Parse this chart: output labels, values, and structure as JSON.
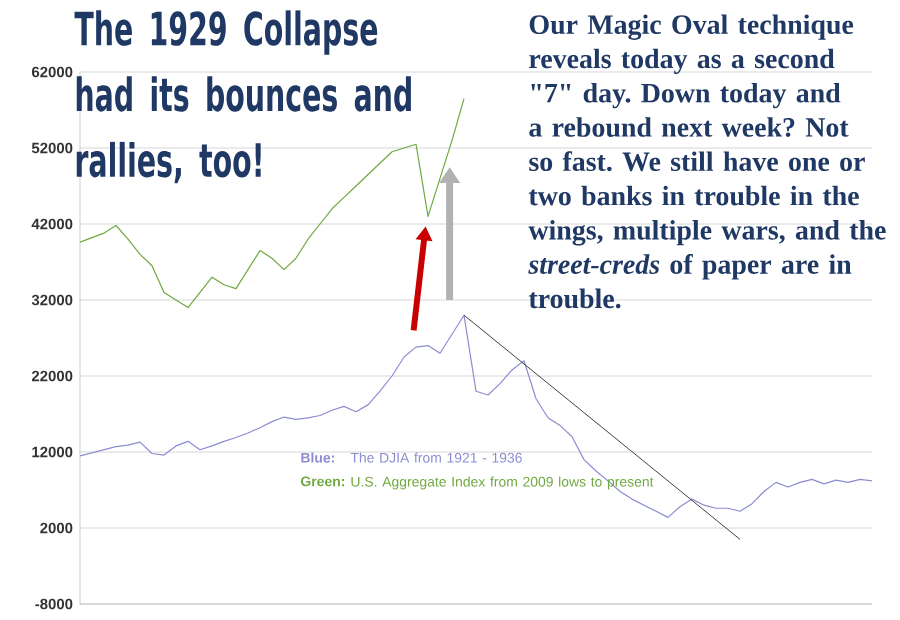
{
  "chart_data": {
    "type": "line",
    "title": "The 1929 Collapse had its bounces and rallies, too!",
    "annotations": [
      "Our Magic Oval technique reveals today as a second \"7\" day. Down today and a rebound next week? Not so fast. We still have one or two banks in trouble in the wings, multiple wars, and the *street-creds* of paper are in trouble.",
      "Blue:",
      "Green:"
    ],
    "categories": [
      null,
      null,
      null,
      null,
      null,
      null,
      null,
      null,
      null,
      null,
      null,
      null,
      null,
      null,
      null,
      null,
      null,
      null,
      null,
      null,
      null,
      null,
      null,
      null,
      null,
      null,
      null,
      null,
      null,
      null,
      null,
      null,
      null,
      null,
      null,
      null,
      null,
      null,
      null,
      null,
      null,
      null,
      null,
      null,
      null,
      null,
      null,
      null,
      null,
      null,
      null,
      null,
      null,
      null,
      null,
      null,
      null,
      null,
      null,
      null,
      null,
      null,
      null,
      null,
      null,
      null,
      null
    ],
    "series": [
      {
        "name": "The DJIA from 1921 - 1936",
        "color": "#8c8cd2",
        "values": [
          11500,
          11900,
          12300,
          12700,
          12900,
          13300,
          11800,
          11600,
          12800,
          13400,
          12300,
          12800,
          13400,
          13900,
          14500,
          15200,
          16000,
          16600,
          16300,
          16500,
          16800,
          17500,
          18000,
          17300,
          18200,
          20000,
          22000,
          24500,
          25800,
          26000,
          25000,
          27500,
          30000,
          20000,
          19500,
          21000,
          22800,
          24000,
          19000,
          16500,
          15500,
          14000,
          11000,
          9500,
          8200,
          6800,
          5800,
          5000,
          4200,
          3400,
          4800,
          5800,
          5000,
          4600,
          4600,
          4200,
          5200,
          6800,
          8000,
          7400,
          8000,
          8400,
          7800,
          8300,
          8000,
          8400,
          8200
        ]
      },
      {
        "name": "U.S. Aggregate Index from 2009 lows to present",
        "color": "#70a840",
        "values": [
          39600,
          40200,
          40800,
          41800,
          40000,
          38000,
          36500,
          33000,
          32000,
          31000,
          33000,
          35000,
          34000,
          33500,
          36000,
          38500,
          37500,
          36000,
          37500,
          40000,
          42000,
          44000,
          45500,
          47000,
          48500,
          50000,
          51500,
          52000,
          52500,
          43000,
          48000,
          53000,
          58500,
          null,
          null,
          null,
          null,
          null,
          null,
          null,
          null,
          null,
          null,
          null,
          null,
          null,
          null,
          null,
          null,
          null,
          null,
          null,
          null,
          null,
          null,
          null,
          null,
          null,
          null,
          null,
          null,
          null,
          null,
          null,
          null,
          null,
          null
        ]
      },
      {
        "color": "#404040",
        "values": [
          null,
          null,
          null,
          null,
          null,
          null,
          null,
          null,
          null,
          null,
          null,
          null,
          null,
          null,
          null,
          null,
          null,
          null,
          null,
          null,
          null,
          null,
          null,
          null,
          null,
          null,
          null,
          null,
          null,
          null,
          null,
          null,
          30000,
          null,
          null,
          null,
          null,
          null,
          null,
          null,
          null,
          null,
          null,
          null,
          null,
          null,
          null,
          null,
          null,
          null,
          null,
          null,
          null,
          null,
          null,
          500,
          null,
          null,
          null,
          null,
          null,
          null,
          null,
          null,
          null,
          null,
          null
        ]
      }
    ],
    "ylim": [
      -8000,
      62000
    ],
    "yticks": [
      -8000,
      2000,
      12000,
      22000,
      32000,
      42000,
      52000,
      62000
    ],
    "grid": "y"
  }
}
